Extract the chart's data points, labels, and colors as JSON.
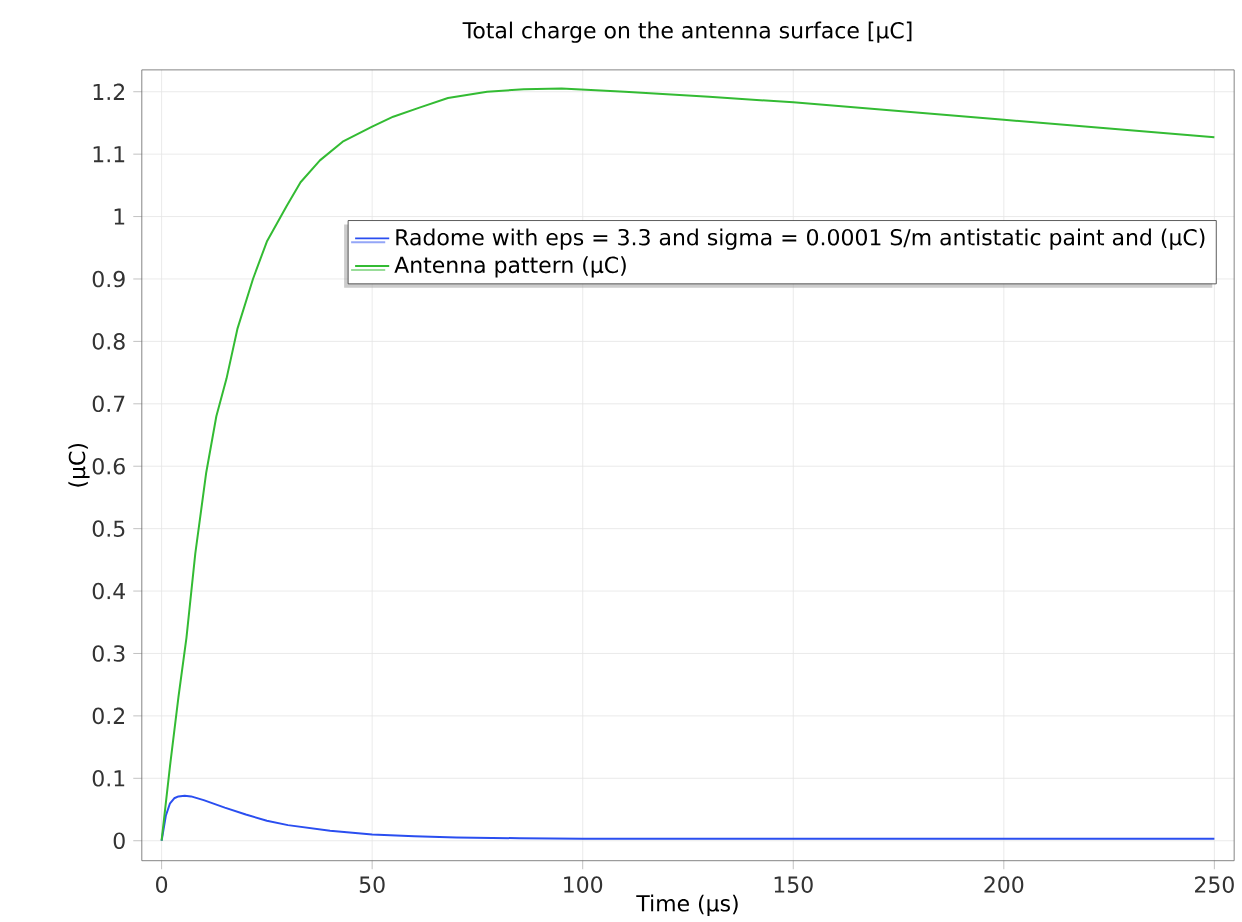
{
  "chart_data": {
    "type": "line",
    "title": "Total charge on the antenna surface [µC]",
    "xlabel": "Time (µs)",
    "ylabel": "(µC)",
    "xlim": [
      -4.7,
      254.7
    ],
    "ylim": [
      -0.032,
      1.235
    ],
    "xticks": [
      0,
      50,
      100,
      150,
      200,
      250
    ],
    "yticks": [
      0,
      0.1,
      0.2,
      0.3,
      0.4,
      0.5,
      0.6,
      0.7,
      0.8,
      0.9,
      1,
      1.1,
      1.2
    ],
    "grid": true,
    "legend": "top right",
    "marker": "none",
    "line_style": "solid",
    "series": [
      {
        "name": "Radome with eps = 3.3 and sigma = 0.0001 S/m antistatic paint and  (µC)",
        "color": "#2a4ef0",
        "x": [
          0,
          1,
          2,
          3,
          4,
          5.5,
          7,
          10,
          15,
          20,
          25,
          30,
          40,
          50,
          60,
          70,
          85,
          100,
          150,
          200,
          250
        ],
        "values": [
          0,
          0.04,
          0.06,
          0.068,
          0.071,
          0.072,
          0.071,
          0.065,
          0.053,
          0.042,
          0.032,
          0.025,
          0.016,
          0.01,
          0.007,
          0.005,
          0.004,
          0.003,
          0.003,
          0.003,
          0.003
        ]
      },
      {
        "name": "Antenna pattern (µC)",
        "color": "#33bb33",
        "x": [
          0,
          2,
          4,
          5.9,
          8,
          10.6,
          13,
          15.4,
          18,
          21.7,
          25,
          29.7,
          33,
          37.6,
          43,
          50,
          55,
          61.4,
          68,
          77.3,
          86,
          95,
          110,
          130,
          150,
          175,
          200,
          225,
          250
        ],
        "values": [
          0,
          0.12,
          0.23,
          0.325,
          0.46,
          0.59,
          0.68,
          0.74,
          0.82,
          0.9,
          0.96,
          1.017,
          1.055,
          1.09,
          1.12,
          1.144,
          1.16,
          1.175,
          1.19,
          1.2,
          1.204,
          1.205,
          1.2,
          1.192,
          1.183,
          1.169,
          1.155,
          1.141,
          1.127
        ]
      }
    ]
  }
}
